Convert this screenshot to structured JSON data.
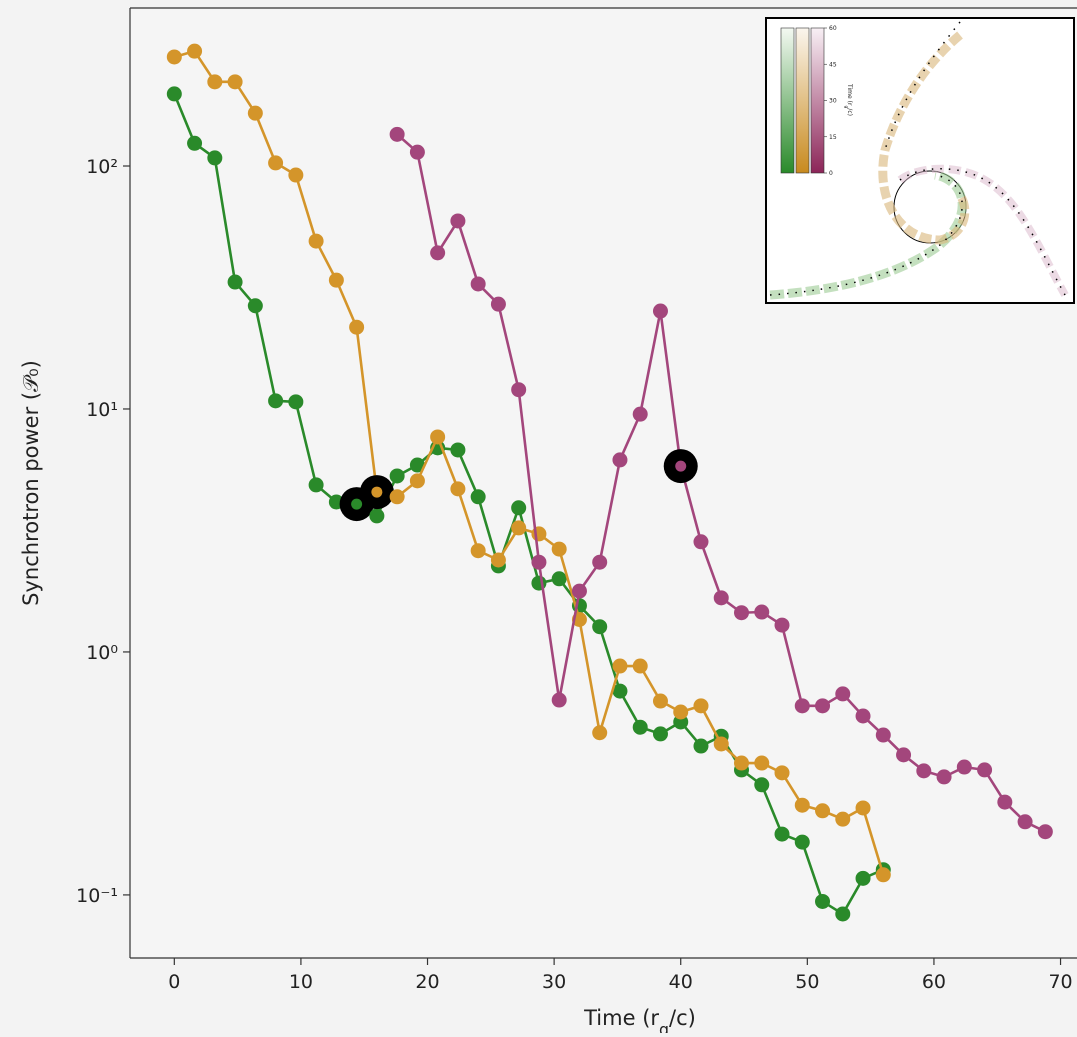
{
  "chart_data": {
    "type": "line",
    "ylog": true,
    "xlabel": "Time (r_g/c)",
    "ylabel": "Synchrotron power (𝒫₀)",
    "xlim": [
      -3.5,
      71.3
    ],
    "ylim": [
      0.055,
      447
    ],
    "xticks": [
      0,
      10,
      20,
      30,
      40,
      50,
      60,
      70
    ],
    "yticks": [
      {
        "value": 0.1,
        "label": "10⁻¹"
      },
      {
        "value": 1,
        "label": "10⁰"
      },
      {
        "value": 10,
        "label": "10¹"
      },
      {
        "value": 100,
        "label": "10²"
      }
    ],
    "series": [
      {
        "color": "#2a8a2a",
        "highlight_index": 9,
        "x": [
          0,
          1.6,
          3.2,
          4.8,
          6.4,
          8,
          9.6,
          11.2,
          12.8,
          14.4,
          16,
          17.6,
          19.2,
          20.8,
          22.4,
          24,
          25.6,
          27.2,
          28.8,
          30.4,
          32,
          33.6,
          35.2,
          36.8,
          38.4,
          40,
          41.6,
          43.2,
          44.8,
          46.4,
          48,
          49.6,
          51.2,
          52.8,
          54.4,
          56
        ],
        "values": [
          198,
          124,
          108,
          33.3,
          26.6,
          10.8,
          10.7,
          4.87,
          4.14,
          4.06,
          3.63,
          5.3,
          5.88,
          6.92,
          6.78,
          4.35,
          2.26,
          3.92,
          1.92,
          2.0,
          1.55,
          1.27,
          0.69,
          0.49,
          0.46,
          0.515,
          0.41,
          0.45,
          0.327,
          0.284,
          0.178,
          0.165,
          0.094,
          0.0835,
          0.117,
          0.127
        ]
      },
      {
        "color": "#d4952a",
        "highlight_index": 10,
        "x": [
          0,
          1.6,
          3.2,
          4.8,
          6.4,
          8,
          9.6,
          11.2,
          12.8,
          14.4,
          16,
          17.6,
          19.2,
          20.8,
          22.4,
          24,
          25.6,
          27.2,
          28.8,
          30.4,
          32,
          33.6,
          35.2,
          36.8,
          38.4,
          40,
          41.6,
          43.2,
          44.8,
          46.4,
          48,
          49.6,
          51.2,
          52.8,
          54.4,
          56
        ],
        "values": [
          281,
          297,
          222,
          222,
          165,
          103,
          91.8,
          49.1,
          33.9,
          21.7,
          4.55,
          4.35,
          5.06,
          7.67,
          4.69,
          2.61,
          2.39,
          3.24,
          3.06,
          2.65,
          1.36,
          0.465,
          0.875,
          0.875,
          0.628,
          0.566,
          0.6,
          0.418,
          0.349,
          0.349,
          0.318,
          0.234,
          0.222,
          0.205,
          0.228,
          0.121
        ]
      },
      {
        "color": "#a3467c",
        "highlight_index": 14,
        "x": [
          17.6,
          19.2,
          20.8,
          22.4,
          24,
          25.6,
          27.2,
          28.8,
          30.4,
          32,
          33.6,
          35.2,
          36.8,
          38.4,
          40,
          41.6,
          43.2,
          44.8,
          46.4,
          48,
          49.6,
          51.2,
          52.8,
          54.4,
          56,
          57.6,
          59.2,
          60.8,
          62.4,
          64,
          65.6,
          67.2,
          68.8
        ],
        "values": [
          135,
          114,
          43.9,
          59.4,
          32.7,
          27.0,
          12.0,
          2.34,
          0.634,
          1.78,
          2.34,
          6.17,
          9.52,
          25.3,
          5.82,
          2.84,
          1.67,
          1.45,
          1.46,
          1.29,
          0.6,
          0.6,
          0.672,
          0.545,
          0.455,
          0.377,
          0.324,
          0.306,
          0.336,
          0.327,
          0.241,
          0.2,
          0.182
        ]
      }
    ],
    "inset_colorbar_label": "Time (r_g/c)",
    "inset_colorbar_ticks": [
      0,
      15,
      30,
      45,
      60
    ],
    "inset_colorbar_lim": [
      0,
      60
    ]
  }
}
